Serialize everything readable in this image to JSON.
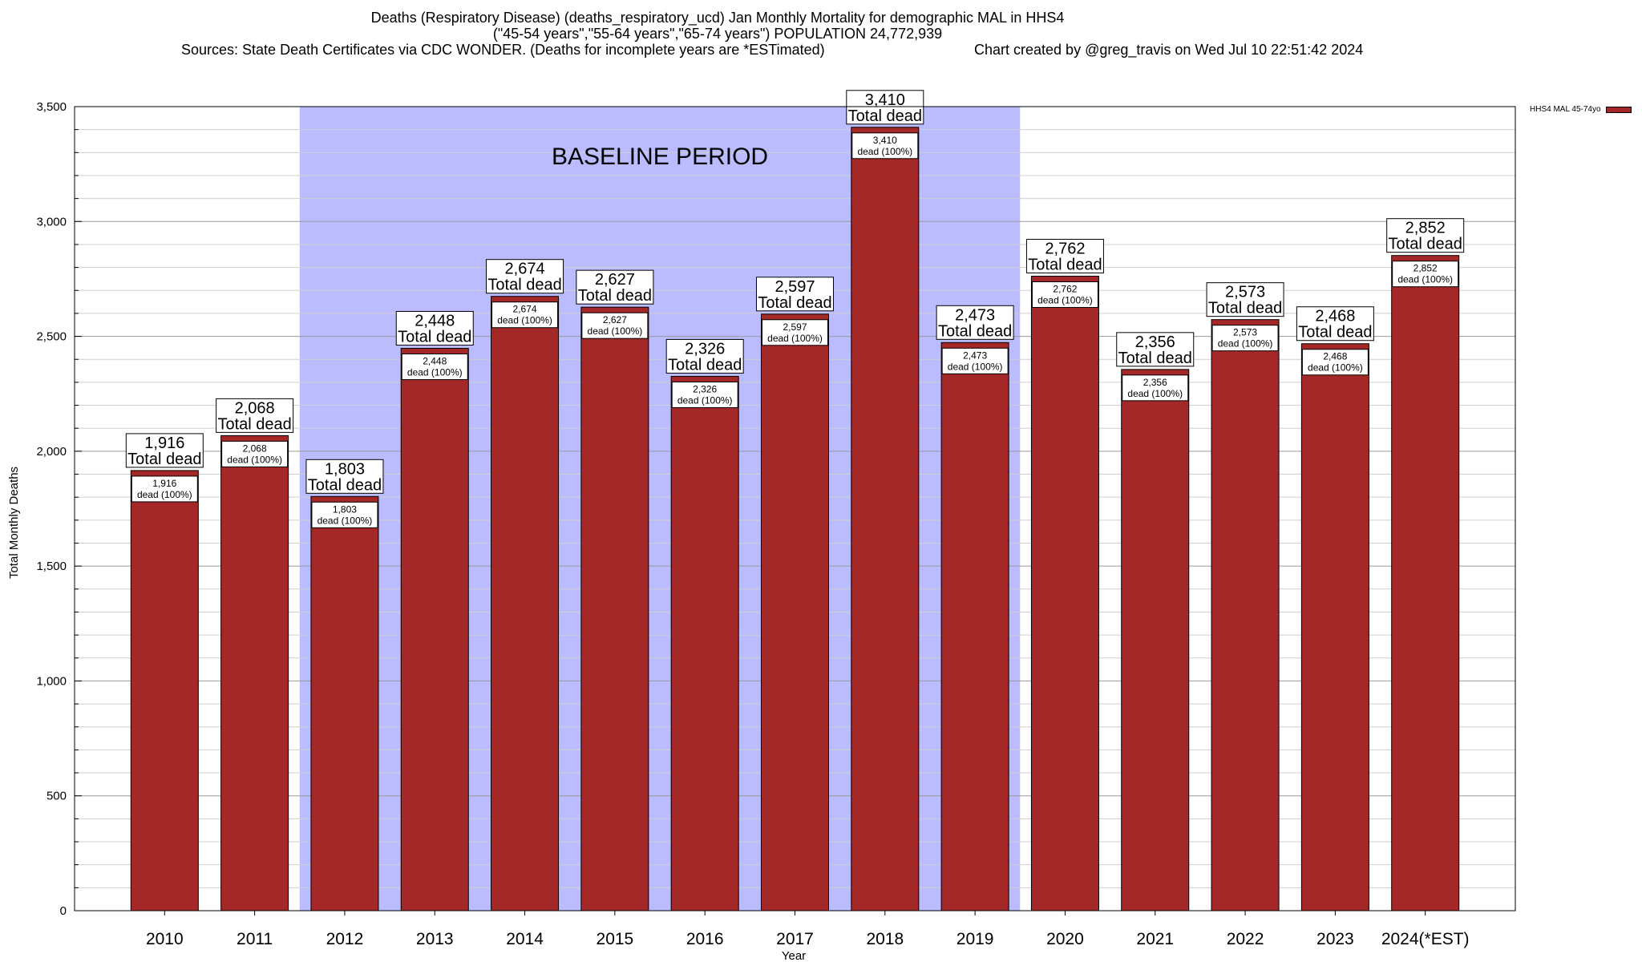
{
  "header": {
    "title_line1": "Deaths (Respiratory Disease) (deaths_respiratory_ucd) Jan Monthly Mortality for demographic MAL in HHS4",
    "title_line2": "(\"45-54 years\",\"55-64 years\",\"65-74 years\") POPULATION 24,772,939",
    "sources": "Sources: State Death Certificates via CDC WONDER. (Deaths for incomplete years are *ESTimated)",
    "credit": "Chart created by @greg_travis on Wed Jul 10 22:51:42 2024"
  },
  "legend": {
    "label": "HHS4 MAL 45-74yo",
    "color": "#a52828"
  },
  "chart_data": {
    "type": "bar",
    "title": "Deaths (Respiratory Disease) (deaths_respiratory_ucd) Jan Monthly Mortality for demographic MAL in HHS4",
    "xlabel": "Year",
    "ylabel": "Total Monthly Deaths",
    "ylim": [
      0,
      3500
    ],
    "yticks": [
      0,
      500,
      1000,
      1500,
      2000,
      2500,
      3000,
      3500
    ],
    "ytick_labels": [
      "0",
      "500",
      "1,000",
      "1,500",
      "2,000",
      "2,500",
      "3,000",
      "3,500"
    ],
    "grid": true,
    "legend_position": "top-right",
    "categories": [
      "2010",
      "2011",
      "2012",
      "2013",
      "2014",
      "2015",
      "2016",
      "2017",
      "2018",
      "2019",
      "2020",
      "2021",
      "2022",
      "2023",
      "2024(*EST)"
    ],
    "series": [
      {
        "name": "HHS4 MAL 45-74yo",
        "color": "#a52828",
        "values": [
          1916,
          2068,
          1803,
          2448,
          2674,
          2627,
          2326,
          2597,
          3410,
          2473,
          2762,
          2356,
          2573,
          2468,
          2852
        ]
      }
    ],
    "top_labels": [
      "1,916",
      "2,068",
      "1,803",
      "2,448",
      "2,674",
      "2,627",
      "2,326",
      "2,597",
      "3,410",
      "2,473",
      "2,762",
      "2,356",
      "2,573",
      "2,468",
      "2,852"
    ],
    "top_label_suffix": "Total dead",
    "inner_labels": [
      "1,916",
      "2,068",
      "1,803",
      "2,448",
      "2,674",
      "2,627",
      "2,326",
      "2,597",
      "3,410",
      "2,473",
      "2,762",
      "2,356",
      "2,573",
      "2,468",
      "2,852"
    ],
    "inner_label_suffix": "dead (100%)",
    "baseline_period": {
      "label": "BASELINE PERIOD",
      "from_category": "2012",
      "to_category": "2019",
      "color": "#bbbbff"
    }
  }
}
